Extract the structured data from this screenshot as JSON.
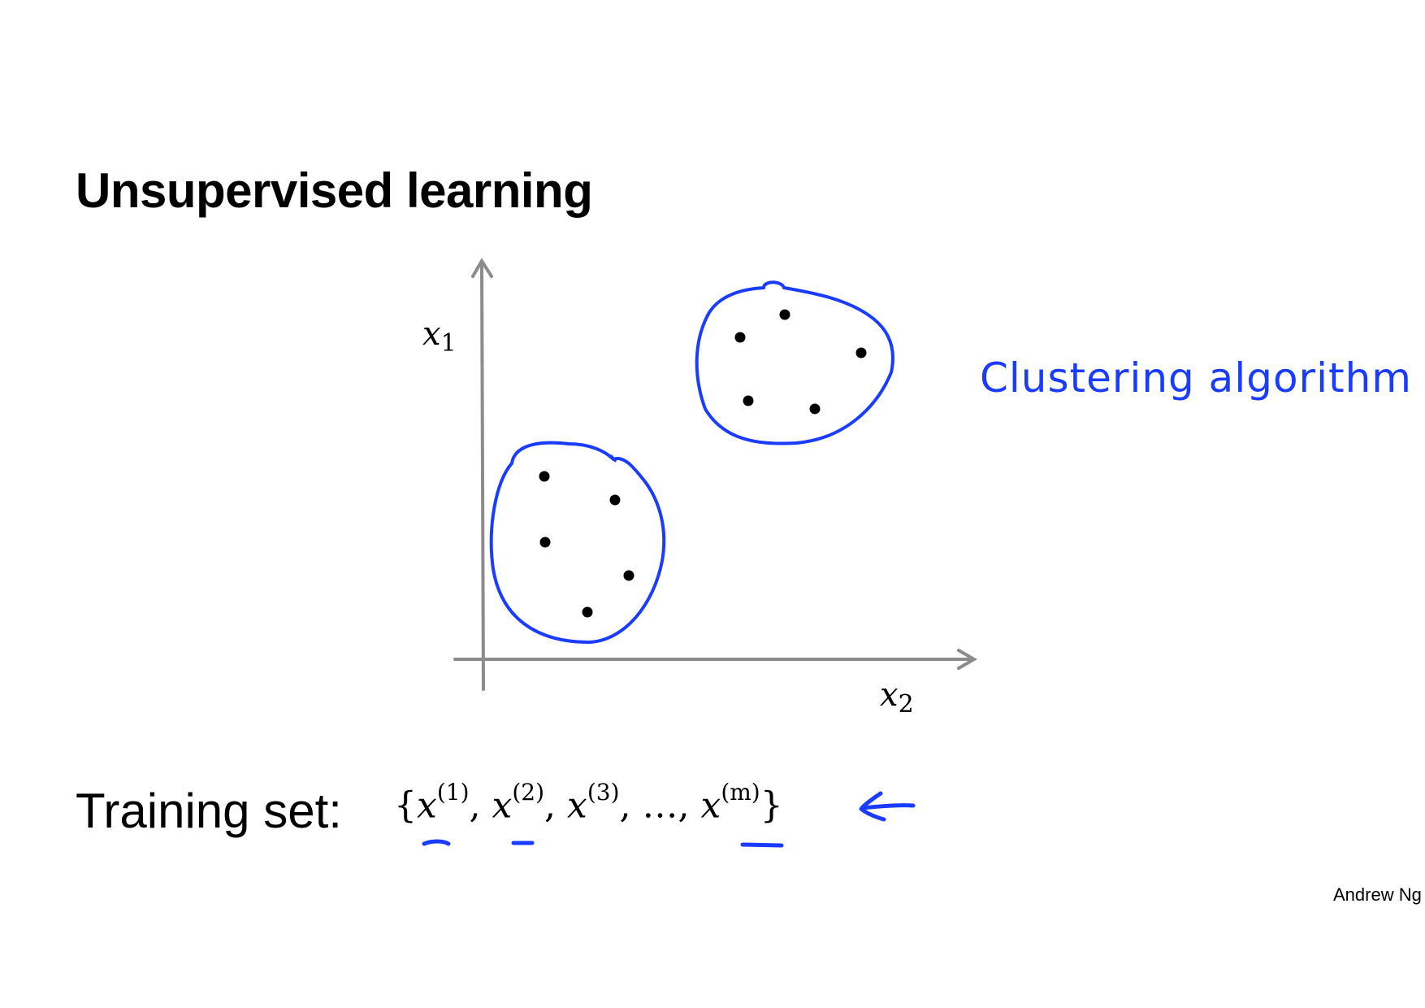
{
  "slide": {
    "title": "Unsupervised learning",
    "author": "Andrew Ng"
  },
  "plot": {
    "y_axis_var": "x",
    "y_axis_sub": "1",
    "x_axis_var": "x",
    "x_axis_sub": "2",
    "annotation": "Clustering algorithm",
    "colors": {
      "axis": "#8c8c8c",
      "ink": "#1a3cff",
      "point": "#000000"
    }
  },
  "training": {
    "label": "Training set:",
    "open_brace": "{",
    "close_brace": "}",
    "var": "x",
    "sep": ",",
    "ellipsis": "…",
    "indices": [
      "(1)",
      "(2)",
      "(3)",
      "(m)"
    ]
  }
}
